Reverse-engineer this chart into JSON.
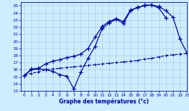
{
  "bg_color": "#cceeff",
  "line_color": "#0000aa",
  "grid_color": "#aaccdd",
  "xmin": -0.5,
  "xmax": 23,
  "ymin": 13,
  "ymax": 25.5,
  "xlabel": "Graphe des températures (°c)",
  "hours": [
    0,
    1,
    2,
    3,
    4,
    5,
    6,
    7,
    8,
    9,
    10,
    11,
    12,
    13,
    14,
    15,
    16,
    17,
    18,
    19,
    20,
    21,
    22,
    23
  ],
  "line_zigzag": [
    15.2,
    16.0,
    16.1,
    16.0,
    15.8,
    15.3,
    15.1,
    13.3,
    15.7,
    17.6,
    19.3,
    21.8,
    22.6,
    23.1,
    22.5,
    24.3,
    24.8,
    25.0,
    25.1,
    24.7,
    23.3,
    null,
    null,
    null
  ],
  "line_smooth": [
    15.2,
    16.1,
    16.2,
    16.8,
    17.2,
    17.4,
    17.7,
    17.9,
    18.2,
    19.0,
    20.6,
    22.1,
    22.8,
    23.2,
    22.8,
    24.4,
    24.7,
    25.1,
    25.1,
    24.9,
    24.3,
    23.4,
    20.3,
    18.3
  ],
  "line_mid": [
    15.2,
    16.0,
    16.1,
    16.0,
    15.8,
    15.3,
    15.1,
    13.3,
    15.7,
    17.6,
    19.3,
    21.8,
    22.6,
    23.1,
    22.5,
    24.3,
    24.8,
    25.0,
    25.1,
    24.7,
    null,
    null,
    null,
    null
  ],
  "line_flat": [
    15.2,
    15.5,
    15.7,
    16.0,
    16.1,
    16.2,
    16.3,
    16.4,
    16.5,
    16.6,
    16.7,
    16.8,
    16.9,
    17.0,
    17.1,
    17.2,
    17.3,
    17.5,
    17.6,
    17.8,
    18.0,
    18.1,
    18.2,
    18.3
  ]
}
